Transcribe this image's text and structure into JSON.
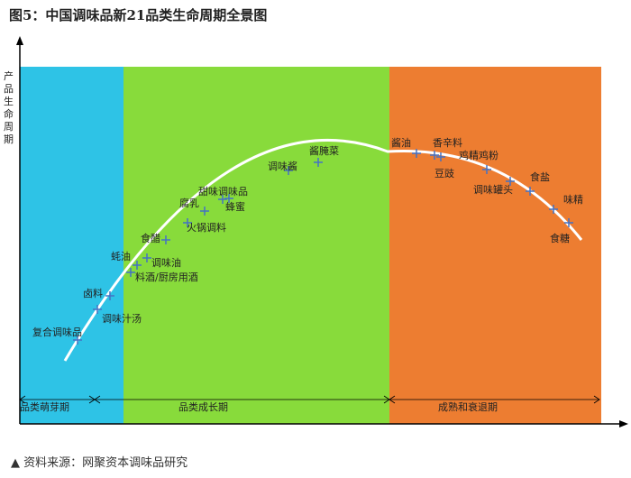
{
  "title": "图5：中国调味品新21品类生命周期全景图",
  "source": "▲ 资料来源：网聚资本调味品研究",
  "chart_data": {
    "type": "line",
    "title": "图5：中国调味品新21品类生命周期全景图",
    "ylabel": "产品生命周期",
    "xlabel": "",
    "stages": [
      {
        "name": "品类萌芽期",
        "color": "#2EC3E6"
      },
      {
        "name": "品类成长期",
        "color": "#88DB3B"
      },
      {
        "name": "成熟和衰退期",
        "color": "#ED7D31"
      }
    ],
    "points": [
      {
        "label": "复合调味品",
        "stage": "品类萌芽期"
      },
      {
        "label": "调味汁汤",
        "stage": "品类萌芽期"
      },
      {
        "label": "卤料",
        "stage": "品类萌芽期"
      },
      {
        "label": "料酒/厨房用酒",
        "stage": "品类成长期"
      },
      {
        "label": "蚝油",
        "stage": "品类成长期"
      },
      {
        "label": "调味油",
        "stage": "品类成长期"
      },
      {
        "label": "食醋",
        "stage": "品类成长期"
      },
      {
        "label": "火锅调料",
        "stage": "品类成长期"
      },
      {
        "label": "腐乳",
        "stage": "品类成长期"
      },
      {
        "label": "甜味调味品",
        "stage": "品类成长期"
      },
      {
        "label": "蜂蜜",
        "stage": "品类成长期"
      },
      {
        "label": "调味酱",
        "stage": "品类成长期"
      },
      {
        "label": "酱腌菜",
        "stage": "品类成长期"
      },
      {
        "label": "酱油",
        "stage": "成熟和衰退期"
      },
      {
        "label": "香辛料",
        "stage": "成熟和衰退期"
      },
      {
        "label": "豆豉",
        "stage": "成熟和衰退期"
      },
      {
        "label": "鸡精鸡粉",
        "stage": "成熟和衰退期"
      },
      {
        "label": "调味罐头",
        "stage": "成熟和衰退期"
      },
      {
        "label": "食盐",
        "stage": "成熟和衰退期"
      },
      {
        "label": "味精",
        "stage": "成熟和衰退期"
      },
      {
        "label": "食糖",
        "stage": "成熟和衰退期"
      }
    ]
  }
}
